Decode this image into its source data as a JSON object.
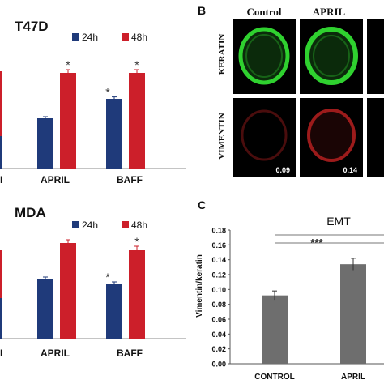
{
  "colors": {
    "blue": "#1f3a7a",
    "red": "#cc1f2a",
    "gray": "#6e6e6e",
    "micro_bg": "#000000",
    "keratin": "#2fd12f",
    "vimentin": "#c42222"
  },
  "panel_b": {
    "letter": "B",
    "col_labels": [
      "Control",
      "APRIL"
    ],
    "row_labels": [
      "KERATIN",
      "VIMENTIN"
    ],
    "values": [
      "0.09",
      "0.14"
    ]
  },
  "chart_data": [
    {
      "id": "t47d",
      "type": "bar",
      "title": "T47D",
      "categories": [
        "APRIL",
        "BAFF"
      ],
      "series": [
        {
          "name": "24h",
          "values": [
            0.31,
            0.43
          ],
          "errors": [
            0.01,
            0.012
          ]
        },
        {
          "name": "48h",
          "values": [
            0.59,
            0.59
          ],
          "errors": [
            0.02,
            0.02
          ]
        }
      ],
      "significance": [
        [
          "",
          "*"
        ],
        [
          "*",
          "*"
        ]
      ],
      "ylim": [
        0,
        0.9
      ],
      "legend": "top-right",
      "left_edge_values": [
        0.6,
        0.2
      ],
      "bottom_mark": "I"
    },
    {
      "id": "mda",
      "type": "bar",
      "title": "MDA",
      "categories": [
        "APRIL",
        "BAFF"
      ],
      "series": [
        {
          "name": "24h",
          "values": [
            0.37,
            0.34
          ],
          "errors": [
            0.01,
            0.01
          ]
        },
        {
          "name": "48h",
          "values": [
            0.59,
            0.55
          ],
          "errors": [
            0.02,
            0.02
          ]
        }
      ],
      "significance": [
        [
          "",
          ""
        ],
        [
          "*",
          "*"
        ]
      ],
      "ylim": [
        0,
        0.9
      ],
      "legend": "top-right",
      "left_edge_values": [
        0.55,
        0.25
      ],
      "bottom_mark": "I"
    },
    {
      "id": "emt",
      "type": "bar",
      "letter": "C",
      "title": "EMT",
      "ylabel": "Vimentin/keratin",
      "categories": [
        "CONTROL",
        "APRIL"
      ],
      "values": [
        0.092,
        0.134
      ],
      "errors": [
        0.006,
        0.008
      ],
      "ylim": [
        0,
        0.18
      ],
      "yticks": [
        "0.00",
        "0.02",
        "0.04",
        "0.06",
        "0.08",
        "0.10",
        "0.12",
        "0.14",
        "0.16",
        "0.18"
      ],
      "significance_label": "***"
    }
  ]
}
